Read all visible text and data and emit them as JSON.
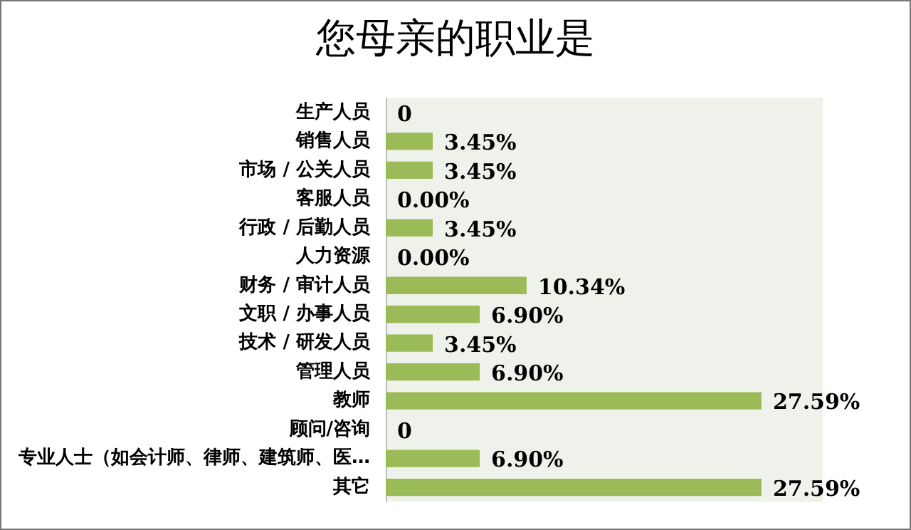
{
  "chart_data": {
    "type": "bar",
    "orientation": "horizontal",
    "title": "您母亲的职业是",
    "categories": [
      "生产人员",
      "销售人员",
      "市场 / 公关人员",
      "客服人员",
      "行政 / 后勤人员",
      "人力资源",
      "财务 / 审计人员",
      "文职 / 办事人员",
      "技术 / 研发人员",
      "管理人员",
      "教师",
      "顾问/咨询",
      "专业人士（如会计师、律师、建筑师、医…",
      "其它"
    ],
    "values": [
      0,
      3.45,
      3.45,
      0,
      3.45,
      0,
      10.34,
      6.9,
      3.45,
      6.9,
      27.59,
      0,
      6.9,
      27.59
    ],
    "value_labels": [
      "0",
      "3.45%",
      "3.45%",
      "0.00%",
      "3.45%",
      "0.00%",
      "10.34%",
      "6.90%",
      "3.45%",
      "6.90%",
      "27.59%",
      "0",
      "6.90%",
      "27.59%"
    ],
    "color": "#9bbb59",
    "legend": false
  }
}
